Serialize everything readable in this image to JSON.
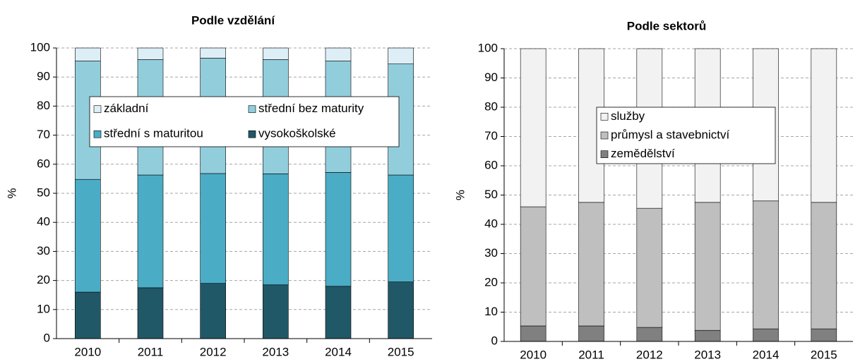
{
  "chart_data": [
    {
      "type": "stacked_bar",
      "title": "Podle vzdělání",
      "ylabel": "%",
      "categories": [
        "2010",
        "2011",
        "2012",
        "2013",
        "2014",
        "2015"
      ],
      "series": [
        {
          "name": "základní",
          "color": "#ddeef6",
          "values": [
            4.5,
            4,
            3.5,
            4,
            4.5,
            5.5
          ]
        },
        {
          "name": "střední bez maturity",
          "color": "#92cddc",
          "values": [
            40.7,
            39.7,
            39.7,
            39.3,
            38.3,
            38.2
          ]
        },
        {
          "name": "střední s maturitou",
          "color": "#4bacc6",
          "values": [
            38.8,
            38.8,
            37.8,
            38.2,
            39.2,
            36.8
          ]
        },
        {
          "name": "vysokoškolské",
          "color": "#215868",
          "values": [
            16,
            17.5,
            19,
            18.5,
            18,
            19.5
          ]
        }
      ],
      "ylim": [
        0,
        100
      ],
      "yticks": [
        0,
        10,
        20,
        30,
        40,
        50,
        60,
        70,
        80,
        90,
        100
      ],
      "grid": true
    },
    {
      "type": "stacked_bar",
      "title": "Podle sektorů",
      "ylabel": "%",
      "categories": [
        "2010",
        "2011",
        "2012",
        "2013",
        "2014",
        "2015"
      ],
      "series": [
        {
          "name": "služby",
          "color": "#f2f2f2",
          "values": [
            54,
            52.5,
            54.5,
            52.5,
            52,
            52.5
          ]
        },
        {
          "name": "průmysl a stavebnictví",
          "color": "#bfbfbf",
          "values": [
            40.7,
            42.2,
            40.7,
            43.7,
            43.7,
            43.2
          ]
        },
        {
          "name": "zemědělství",
          "color": "#808080",
          "values": [
            5.3,
            5.3,
            4.8,
            3.8,
            4.3,
            4.3
          ]
        }
      ],
      "ylim": [
        0,
        100
      ],
      "yticks": [
        0,
        10,
        20,
        30,
        40,
        50,
        60,
        70,
        80,
        90,
        100
      ],
      "grid": true
    }
  ]
}
